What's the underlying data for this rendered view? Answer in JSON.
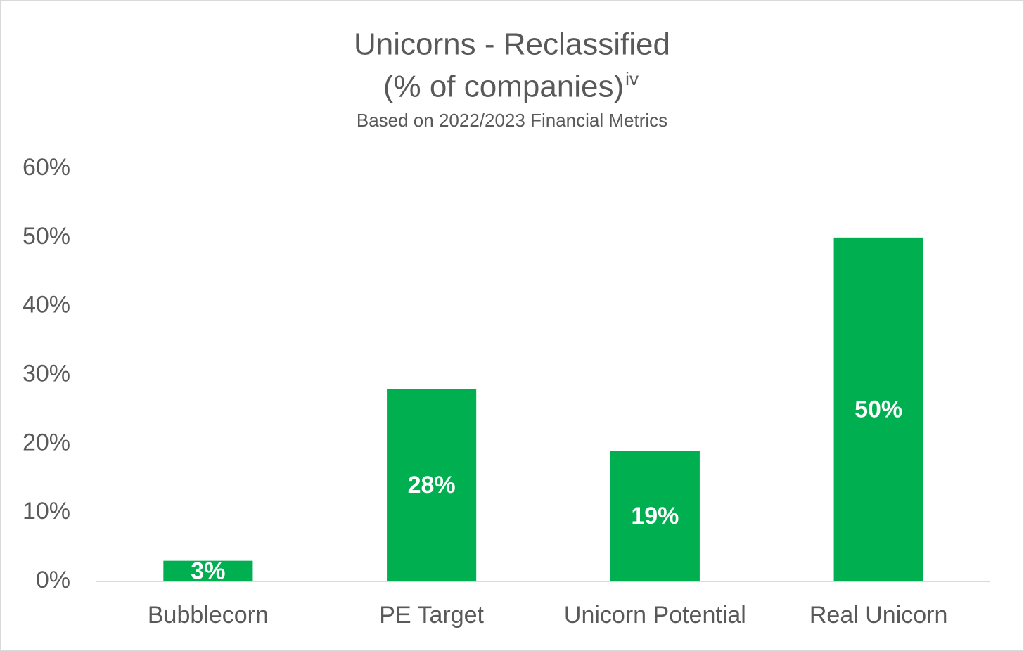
{
  "chart_data": {
    "type": "bar",
    "title": [
      "Unicorns - Reclassified",
      "(% of companies)"
    ],
    "title_superscript": "iv",
    "subtitle": "Based on 2022/2023 Financial Metrics",
    "categories": [
      "Bubblecorn",
      "PE Target",
      "Unicorn Potential",
      "Real Unicorn"
    ],
    "values": [
      3,
      28,
      19,
      50
    ],
    "value_labels": [
      "3%",
      "28%",
      "19%",
      "50%"
    ],
    "color": "#00b050",
    "ylim": [
      0,
      60
    ],
    "yticks": [
      {
        "value": 0,
        "label": "0%"
      },
      {
        "value": 10,
        "label": "10%"
      },
      {
        "value": 20,
        "label": "20%"
      },
      {
        "value": 30,
        "label": "30%"
      },
      {
        "value": 40,
        "label": "40%"
      },
      {
        "value": 50,
        "label": "50%"
      },
      {
        "value": 60,
        "label": "60%"
      }
    ],
    "grid": false
  }
}
